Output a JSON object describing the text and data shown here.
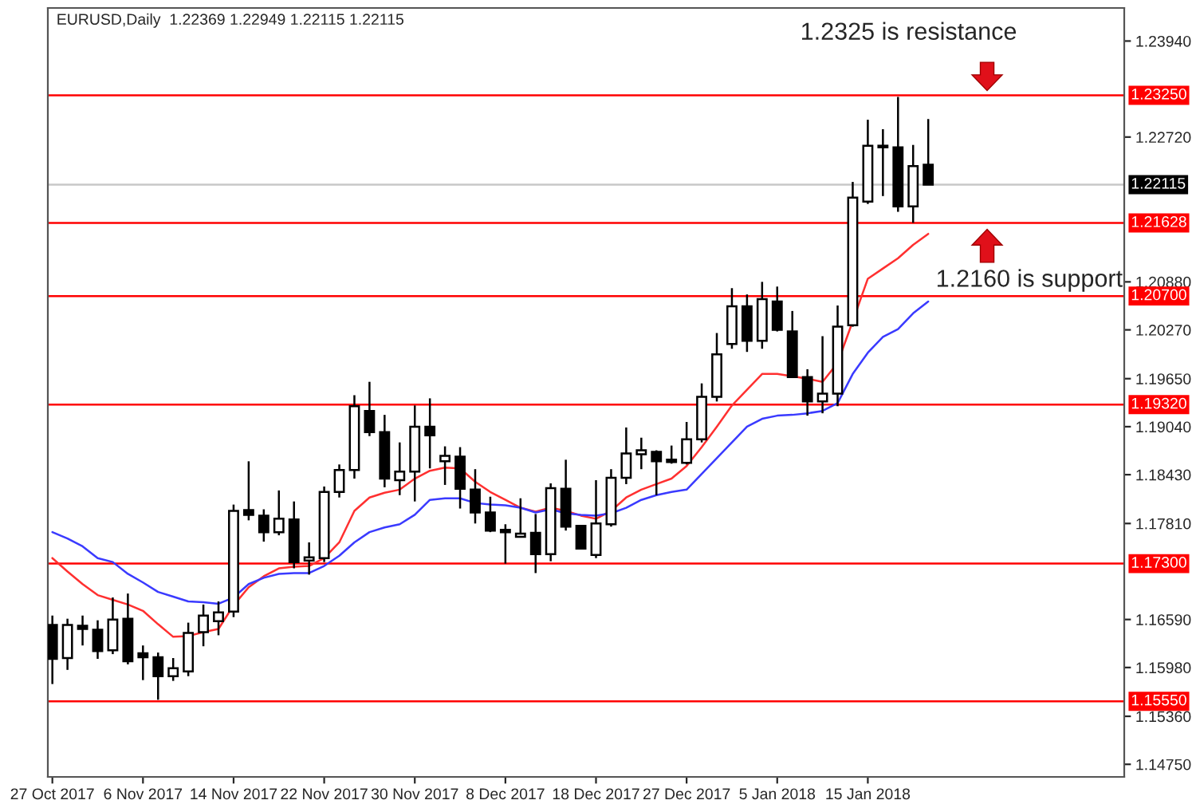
{
  "chart_data": {
    "type": "candlestick",
    "categories": [
      "27 Oct 2017",
      null,
      null,
      null,
      null,
      null,
      "6 Nov 2017",
      null,
      null,
      null,
      null,
      null,
      "14 Nov 2017",
      null,
      null,
      null,
      null,
      null,
      "22 Nov 2017",
      null,
      null,
      null,
      null,
      null,
      "30 Nov 2017",
      null,
      null,
      null,
      null,
      null,
      "8 Dec 2017",
      null,
      null,
      null,
      null,
      null,
      "18 Dec 2017",
      null,
      null,
      null,
      null,
      null,
      "27 Dec 2017",
      null,
      null,
      null,
      null,
      null,
      "5 Jan 2018",
      null,
      null,
      null,
      null,
      null,
      "15 Jan 2018",
      null,
      null,
      null,
      null
    ],
    "ohlc": [
      [
        1.1652,
        1.1664,
        1.1577,
        1.1609
      ],
      [
        1.161,
        1.166,
        1.1595,
        1.1652
      ],
      [
        1.1651,
        1.1664,
        1.1626,
        1.1647
      ],
      [
        1.1646,
        1.1658,
        1.1609,
        1.1619
      ],
      [
        1.162,
        1.1687,
        1.1615,
        1.1659
      ],
      [
        1.166,
        1.1692,
        1.1602,
        1.1606
      ],
      [
        1.1616,
        1.1626,
        1.1582,
        1.1611
      ],
      [
        1.1611,
        1.1617,
        1.1557,
        1.1587
      ],
      [
        1.1587,
        1.161,
        1.1581,
        1.1597
      ],
      [
        1.1593,
        1.1655,
        1.1587,
        1.1642
      ],
      [
        1.1643,
        1.1678,
        1.1625,
        1.1664
      ],
      [
        1.1657,
        1.1682,
        1.1639,
        1.1668
      ],
      [
        1.1669,
        1.1805,
        1.1662,
        1.1797
      ],
      [
        1.1798,
        1.186,
        1.1785,
        1.1792
      ],
      [
        1.1791,
        1.1799,
        1.1758,
        1.177
      ],
      [
        1.177,
        1.1823,
        1.1766,
        1.1787
      ],
      [
        1.1786,
        1.1809,
        1.1724,
        1.1732
      ],
      [
        1.1734,
        1.1757,
        1.1716,
        1.1738
      ],
      [
        1.1737,
        1.1828,
        1.1732,
        1.1821
      ],
      [
        1.1821,
        1.1856,
        1.1814,
        1.1849
      ],
      [
        1.1849,
        1.1944,
        1.1838,
        1.193
      ],
      [
        1.1924,
        1.1961,
        1.1892,
        1.1897
      ],
      [
        1.1897,
        1.1919,
        1.1827,
        1.1838
      ],
      [
        1.1836,
        1.1884,
        1.1817,
        1.1847
      ],
      [
        1.1847,
        1.1931,
        1.1809,
        1.1904
      ],
      [
        1.1904,
        1.194,
        1.1851,
        1.1893
      ],
      [
        1.186,
        1.1879,
        1.183,
        1.1867
      ],
      [
        1.1866,
        1.1878,
        1.18,
        1.1825
      ],
      [
        1.1824,
        1.185,
        1.1781,
        1.1795
      ],
      [
        1.1795,
        1.1815,
        1.177,
        1.1772
      ],
      [
        1.1773,
        1.178,
        1.173,
        1.177
      ],
      [
        1.1764,
        1.1813,
        1.1763,
        1.1768
      ],
      [
        1.1769,
        1.1793,
        1.1718,
        1.1742
      ],
      [
        1.1742,
        1.1832,
        1.1733,
        1.1826
      ],
      [
        1.1825,
        1.1862,
        1.1772,
        1.1777
      ],
      [
        1.1778,
        1.1779,
        1.1748,
        1.1749
      ],
      [
        1.1741,
        1.1836,
        1.1737,
        1.1781
      ],
      [
        1.178,
        1.185,
        1.1777,
        1.1839
      ],
      [
        1.1839,
        1.1903,
        1.1831,
        1.187
      ],
      [
        1.1869,
        1.189,
        1.185,
        1.1874
      ],
      [
        1.1872,
        1.1874,
        1.1817,
        1.186
      ],
      [
        1.1862,
        1.188,
        1.1857,
        1.1859
      ],
      [
        1.1858,
        1.191,
        1.1856,
        1.1888
      ],
      [
        1.1888,
        1.1959,
        1.1884,
        1.1942
      ],
      [
        1.1942,
        1.2023,
        1.1936,
        1.1996
      ],
      [
        1.2009,
        1.208,
        1.2003,
        1.2057
      ],
      [
        1.2057,
        1.2072,
        1.1999,
        1.2013
      ],
      [
        1.2013,
        1.2088,
        1.2003,
        1.2066
      ],
      [
        1.2063,
        1.2082,
        1.2025,
        1.2027
      ],
      [
        1.2025,
        1.2051,
        1.1966,
        1.1967
      ],
      [
        1.1967,
        1.1977,
        1.1918,
        1.1936
      ],
      [
        1.1936,
        1.2019,
        1.1921,
        1.1946
      ],
      [
        1.1946,
        1.2058,
        1.193,
        1.2031
      ],
      [
        1.2033,
        1.2215,
        1.2031,
        1.2195
      ],
      [
        1.219,
        1.2294,
        1.2187,
        1.2261
      ],
      [
        1.2261,
        1.2282,
        1.2197,
        1.2259
      ],
      [
        1.2259,
        1.2323,
        1.2177,
        1.2184
      ],
      [
        1.2184,
        1.2262,
        1.2163,
        1.2235
      ],
      [
        1.22369,
        1.22949,
        1.22115,
        1.22115
      ]
    ],
    "series": [
      {
        "type": "line",
        "color": "#ff3030",
        "values": [
          1.1737,
          1.172,
          1.1704,
          1.169,
          1.1684,
          1.1678,
          1.167,
          1.1653,
          1.1637,
          1.1638,
          1.1643,
          1.1647,
          1.1677,
          1.17,
          1.1714,
          1.1724,
          1.1726,
          1.1727,
          1.1737,
          1.1757,
          1.1797,
          1.1814,
          1.182,
          1.1824,
          1.1838,
          1.1848,
          1.1852,
          1.1851,
          1.1834,
          1.1821,
          1.1811,
          1.1801,
          1.1796,
          1.1801,
          1.1797,
          1.1791,
          1.1787,
          1.1797,
          1.1814,
          1.1824,
          1.1831,
          1.1838,
          1.1854,
          1.1878,
          1.1904,
          1.1931,
          1.1951,
          1.1971,
          1.1971,
          1.1968,
          1.1965,
          1.1961,
          1.1985,
          1.2038,
          1.2092,
          1.2105,
          1.2118,
          1.2135,
          1.2149
        ]
      },
      {
        "type": "line",
        "color": "#3a3aff",
        "values": [
          1.177,
          1.1762,
          1.1752,
          1.1737,
          1.1732,
          1.1717,
          1.1706,
          1.1694,
          1.1688,
          1.1682,
          1.1681,
          1.1679,
          1.1687,
          1.1704,
          1.1712,
          1.1717,
          1.1718,
          1.1718,
          1.1727,
          1.174,
          1.1757,
          1.177,
          1.1776,
          1.178,
          1.1792,
          1.1811,
          1.1813,
          1.1813,
          1.1807,
          1.1805,
          1.1804,
          1.1801,
          1.1795,
          1.1799,
          1.1794,
          1.1792,
          1.1791,
          1.1794,
          1.1801,
          1.1811,
          1.1817,
          1.1821,
          1.1824,
          1.1844,
          1.1864,
          1.1884,
          1.1904,
          1.1914,
          1.1918,
          1.1919,
          1.1921,
          1.1924,
          1.1934,
          1.1971,
          1.1998,
          1.2018,
          1.2028,
          1.2048,
          1.2063
        ]
      }
    ],
    "ylim": [
      1.1459,
      1.2436
    ],
    "yticks": [
      {
        "value": 1.2394,
        "label": "1.23940"
      },
      {
        "value": 1.2272,
        "label": "1.22720"
      },
      {
        "value": 1.2088,
        "label": "1.20880"
      },
      {
        "value": 1.2027,
        "label": "1.20270"
      },
      {
        "value": 1.1965,
        "label": "1.19650"
      },
      {
        "value": 1.1904,
        "label": "1.19040"
      },
      {
        "value": 1.1843,
        "label": "1.18430"
      },
      {
        "value": 1.1781,
        "label": "1.17810"
      },
      {
        "value": 1.1659,
        "label": "1.16590"
      },
      {
        "value": 1.1598,
        "label": "1.15980"
      },
      {
        "value": 1.1536,
        "label": "1.15360"
      },
      {
        "value": 1.1475,
        "label": "1.14750"
      }
    ],
    "ref_lines": [
      {
        "axis": "y",
        "value": 1.2325,
        "label": "1.23250",
        "color": "#ff0000"
      },
      {
        "axis": "y",
        "value": 1.22115,
        "label": "1.22115",
        "color": "#c8c8c8"
      },
      {
        "axis": "y",
        "value": 1.21628,
        "label": "1.21628",
        "color": "#ff0000"
      },
      {
        "axis": "y",
        "value": 1.207,
        "label": "1.20700",
        "color": "#ff0000"
      },
      {
        "axis": "y",
        "value": 1.1932,
        "label": "1.19320",
        "color": "#ff0000"
      },
      {
        "axis": "y",
        "value": 1.173,
        "label": "1.17300",
        "color": "#ff0000"
      },
      {
        "axis": "y",
        "value": 1.1555,
        "label": "1.15550",
        "color": "#ff0000"
      }
    ],
    "annotations": [
      "EURUSD,Daily  1.22369 1.22949 1.22115 1.22115",
      {
        "text": "1.2325 is resistance",
        "y": 1.2325
      },
      {
        "text": "1.2160 is support",
        "y": 1.21628
      }
    ],
    "grid": false,
    "legend": false
  }
}
